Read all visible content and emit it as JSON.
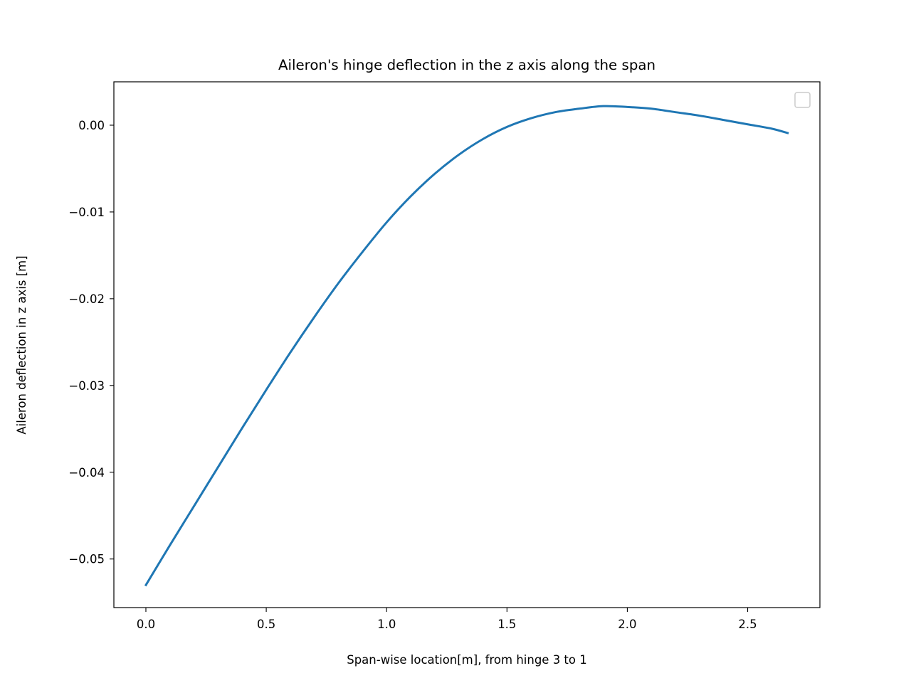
{
  "chart_data": {
    "type": "line",
    "title": "Aileron's hinge deflection in the z axis along the span",
    "xlabel": "Span-wise location[m], from hinge 3 to 1",
    "ylabel": "Aileron deflection in z axis [m]",
    "xlim": [
      -0.133,
      2.8
    ],
    "ylim": [
      -0.0556,
      0.005
    ],
    "xticks": [
      0.0,
      0.5,
      1.0,
      1.5,
      2.0,
      2.5
    ],
    "xtick_labels": [
      "0.0",
      "0.5",
      "1.0",
      "1.5",
      "2.0",
      "2.5"
    ],
    "yticks": [
      0.0,
      -0.01,
      -0.02,
      -0.03,
      -0.04,
      -0.05
    ],
    "ytick_labels": [
      "0.00",
      "−0.01",
      "−0.02",
      "−0.03",
      "−0.04",
      "−0.05"
    ],
    "grid": false,
    "legend": {
      "position": "top-right",
      "entries": []
    },
    "series": [
      {
        "color": "#1f77b4",
        "x": [
          0.0,
          0.1,
          0.2,
          0.3,
          0.4,
          0.5,
          0.6,
          0.7,
          0.8,
          0.9,
          1.0,
          1.1,
          1.2,
          1.3,
          1.4,
          1.5,
          1.6,
          1.7,
          1.8,
          1.9,
          2.0,
          2.1,
          2.2,
          2.3,
          2.4,
          2.5,
          2.6,
          2.666
        ],
        "y": [
          -0.053,
          -0.0484,
          -0.0439,
          -0.0394,
          -0.0349,
          -0.0305,
          -0.0262,
          -0.0221,
          -0.0182,
          -0.0146,
          -0.0112,
          -0.0082,
          -0.0056,
          -0.0034,
          -0.0016,
          -0.0002,
          0.0008,
          0.0015,
          0.0019,
          0.0022,
          0.0021,
          0.0019,
          0.0015,
          0.0011,
          0.0006,
          0.0001,
          -0.0004,
          -0.0009
        ]
      }
    ]
  }
}
